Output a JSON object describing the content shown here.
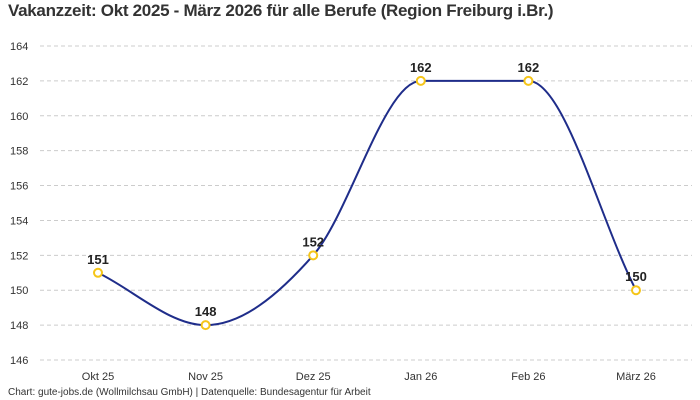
{
  "chart_data": {
    "type": "line",
    "title": "Vakanzzeit: Okt 2025 - März 2026 für alle Berufe (Region Freiburg i.Br.)",
    "categories": [
      "Okt 25",
      "Nov 25",
      "Dez 25",
      "Jan 26",
      "Feb 26",
      "März 26"
    ],
    "values": [
      151,
      148,
      152,
      162,
      162,
      150
    ],
    "data_labels": [
      "151",
      "148",
      "152",
      "162",
      "162",
      "150"
    ],
    "ylim": [
      146,
      164
    ],
    "yticks": [
      "146",
      "148",
      "150",
      "152",
      "154",
      "156",
      "158",
      "160",
      "162",
      "164"
    ],
    "grid": true,
    "line_color": "#1f2d8a",
    "marker_color": "#f5c518",
    "footer": "Chart: gute-jobs.de (Wollmilchsau GmbH) | Datenquelle: Bundesagentur für Arbeit"
  }
}
